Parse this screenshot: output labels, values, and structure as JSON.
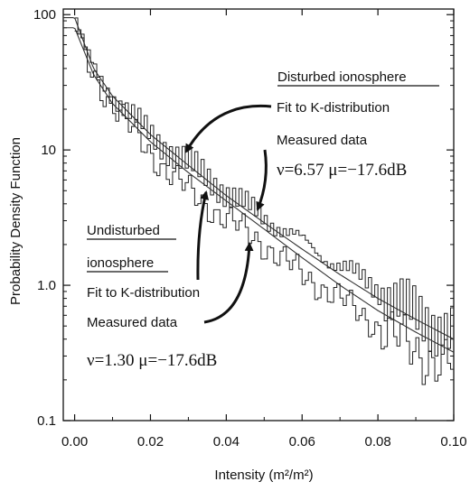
{
  "chart_data": {
    "type": "line",
    "xlabel": "Intensity (m²/m²)",
    "ylabel": "Probability Density Function",
    "xlim": [
      -0.003,
      0.1
    ],
    "ylim": [
      0.1,
      110
    ],
    "yscale": "log",
    "x_ticks": [
      "0.00",
      "0.02",
      "0.04",
      "0.06",
      "0.08",
      "0.10"
    ],
    "x_tick_values": [
      0,
      0.02,
      0.04,
      0.06,
      0.08,
      0.1
    ],
    "y_ticks": [
      "0.1",
      "1.0",
      "10",
      "100"
    ],
    "y_tick_values": [
      0.1,
      1,
      10,
      100
    ],
    "grid": false,
    "series": [
      {
        "name": "Disturbed ionosphere",
        "fit_x": [
          0,
          0.005,
          0.01,
          0.02,
          0.03,
          0.04,
          0.05,
          0.06,
          0.07,
          0.08,
          0.09,
          0.1
        ],
        "fit_y": [
          95,
          40,
          25,
          13,
          7.7,
          4.6,
          2.9,
          1.85,
          1.2,
          0.8,
          0.56,
          0.4
        ],
        "measured_x": [
          0,
          0.002,
          0.005,
          0.01,
          0.015,
          0.02,
          0.025,
          0.03,
          0.035,
          0.04,
          0.045,
          0.05,
          0.055,
          0.06,
          0.065,
          0.07,
          0.075,
          0.08,
          0.085,
          0.09,
          0.095,
          0.1
        ],
        "measured_y": [
          100,
          60,
          40,
          26,
          18,
          13,
          10,
          8,
          6.3,
          4.9,
          3.9,
          3.2,
          2.6,
          2.1,
          1.7,
          1.4,
          1.15,
          0.95,
          0.75,
          0.6,
          0.52,
          0.45
        ]
      },
      {
        "name": "Undisturbed ionosphere",
        "fit_x": [
          0,
          0.005,
          0.01,
          0.02,
          0.03,
          0.04,
          0.05,
          0.06,
          0.07,
          0.08,
          0.09,
          0.1
        ],
        "fit_y": [
          80,
          36,
          22,
          11.5,
          6.8,
          4.2,
          2.6,
          1.6,
          1.0,
          0.65,
          0.45,
          0.32
        ],
        "measured_x": [
          0,
          0.002,
          0.005,
          0.01,
          0.015,
          0.02,
          0.025,
          0.03,
          0.035,
          0.04,
          0.045,
          0.05,
          0.055,
          0.06,
          0.065,
          0.07,
          0.075,
          0.08,
          0.085,
          0.09,
          0.095,
          0.1
        ],
        "measured_y": [
          90,
          55,
          36,
          22,
          14,
          9.5,
          6.8,
          5.0,
          3.9,
          3.1,
          2.5,
          2.0,
          1.55,
          1.2,
          0.98,
          0.8,
          0.63,
          0.5,
          0.4,
          0.33,
          0.28,
          0.26
        ]
      }
    ],
    "annotations": {
      "disturbed_title": "Disturbed ionosphere",
      "disturbed_fit": "Fit to K-distribution",
      "disturbed_measured": "Measured data",
      "disturbed_params": "ν=6.57 μ=−17.6dB",
      "undisturbed_title_1": "Undisturbed",
      "undisturbed_title_2": "ionosphere",
      "undisturbed_fit": "Fit to K-distribution",
      "undisturbed_measured": "Measured data",
      "undisturbed_params": "ν=1.30 μ=−17.6dB"
    }
  }
}
